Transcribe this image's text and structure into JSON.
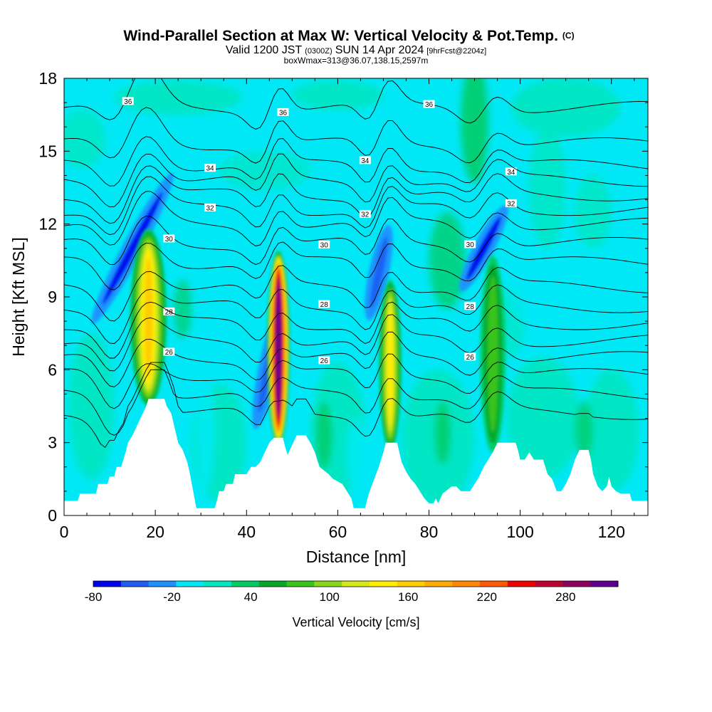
{
  "chart_data": {
    "type": "heatmap",
    "title": "Wind-Parallel Section at Max W: Vertical Velocity & Pot.Temp.",
    "title_mark": "(C)",
    "subtitle": {
      "valid_prefix": "Valid 1200 JST",
      "utc": "(0300Z)",
      "date": "SUN 14 Apr 2024",
      "forecast": "[9hrFcst@2204z]"
    },
    "box_info": "boxWmax=313@36.07,138.15,2597m",
    "xlabel": "Distance [nm]",
    "ylabel": "Height [Kft MSL]",
    "xlim": [
      0,
      128
    ],
    "ylim": [
      0,
      18
    ],
    "x_ticks": [
      0,
      20,
      40,
      60,
      80,
      100,
      120
    ],
    "y_ticks": [
      0,
      3,
      6,
      9,
      12,
      15,
      18
    ],
    "colorbar": {
      "label": "Vertical Velocity [cm/s]",
      "min": -80,
      "max": 320,
      "step": 20,
      "tick_values": [
        -80,
        -20,
        40,
        100,
        160,
        220,
        280
      ],
      "colors": [
        "#0000ee",
        "#1f5cf2",
        "#1e90ff",
        "#00e8f6",
        "#00e6c0",
        "#00cc66",
        "#05a82c",
        "#38c41a",
        "#8cd61a",
        "#d4e81c",
        "#ffee00",
        "#ffcc00",
        "#ffaa00",
        "#ff8800",
        "#ff5a00",
        "#ee0000",
        "#c00030",
        "#8c0060",
        "#5c0090"
      ]
    },
    "theta_contour_labels": [
      "36",
      "34",
      "32",
      "30",
      "28",
      "26"
    ],
    "updraft_cores": [
      {
        "x": 18.5,
        "base_kft": 4.8,
        "top_kft": 12.1,
        "max_cms": 150
      },
      {
        "x": 47,
        "base_kft": 3.2,
        "top_kft": 11.2,
        "max_cms": 313
      },
      {
        "x": 71.5,
        "base_kft": 3.0,
        "top_kft": 10.0,
        "max_cms": 120
      },
      {
        "x": 94,
        "base_kft": 2.9,
        "top_kft": 11.0,
        "max_cms": 70
      }
    ],
    "downdraft_bands": [
      {
        "x": 15,
        "base_kft": 7.5,
        "top_kft": 14.5,
        "min_cms": -80
      },
      {
        "x": 45,
        "base_kft": 3.5,
        "top_kft": 9,
        "min_cms": -60
      },
      {
        "x": 69,
        "base_kft": 8,
        "top_kft": 12,
        "min_cms": -60
      },
      {
        "x": 92,
        "base_kft": 9,
        "top_kft": 13,
        "min_cms": -80
      }
    ],
    "terrain_kft": [
      [
        0,
        0.6
      ],
      [
        3,
        0.6
      ],
      [
        3.5,
        0.9
      ],
      [
        7,
        0.9
      ],
      [
        7.5,
        1.3
      ],
      [
        9.5,
        1.3
      ],
      [
        10,
        1.6
      ],
      [
        11,
        1.6
      ],
      [
        11.5,
        2
      ],
      [
        12.5,
        2
      ],
      [
        13,
        2.3
      ],
      [
        13.5,
        2.6
      ],
      [
        14,
        3
      ],
      [
        15,
        3.3
      ],
      [
        16,
        3.7
      ],
      [
        17,
        4.1
      ],
      [
        18,
        4.5
      ],
      [
        18.5,
        4.8
      ],
      [
        22,
        4.8
      ],
      [
        22.5,
        4.5
      ],
      [
        23.5,
        4.2
      ],
      [
        24,
        3.8
      ],
      [
        24.5,
        3.4
      ],
      [
        25,
        3
      ],
      [
        26,
        2.7
      ],
      [
        27,
        2.2
      ],
      [
        27.5,
        1.8
      ],
      [
        28,
        1.3
      ],
      [
        28.5,
        0.8
      ],
      [
        29,
        0.3
      ],
      [
        33,
        0.3
      ],
      [
        33.5,
        0.6
      ],
      [
        34,
        1
      ],
      [
        35,
        1
      ],
      [
        35.5,
        1.3
      ],
      [
        37,
        1.3
      ],
      [
        37.5,
        1.7
      ],
      [
        39,
        1.7
      ],
      [
        40,
        1.7
      ],
      [
        41,
        2
      ],
      [
        42,
        2
      ],
      [
        43,
        2.2
      ],
      [
        44,
        2.6
      ],
      [
        45,
        3
      ],
      [
        46,
        3.2
      ],
      [
        48,
        3.2
      ],
      [
        48.5,
        2.8
      ],
      [
        49,
        2.5
      ],
      [
        50,
        2.9
      ],
      [
        51,
        3.3
      ],
      [
        53,
        3.3
      ],
      [
        54,
        3
      ],
      [
        55,
        2.6
      ],
      [
        55.5,
        2.3
      ],
      [
        56,
        2
      ],
      [
        58,
        1.7
      ],
      [
        59,
        1.5
      ],
      [
        61,
        1.3
      ],
      [
        62,
        1
      ],
      [
        63,
        0.7
      ],
      [
        63.5,
        0.3
      ],
      [
        66,
        0.3
      ],
      [
        66.5,
        0.7
      ],
      [
        67,
        1
      ],
      [
        68,
        1.5
      ],
      [
        69,
        2
      ],
      [
        70,
        2.6
      ],
      [
        70.5,
        3
      ],
      [
        73,
        3
      ],
      [
        73.5,
        2.6
      ],
      [
        74,
        2.2
      ],
      [
        75,
        1.8
      ],
      [
        76,
        1.5
      ],
      [
        77,
        1.3
      ],
      [
        78,
        1
      ],
      [
        79,
        0.7
      ],
      [
        80,
        0.5
      ],
      [
        81,
        0.5
      ],
      [
        81.5,
        0.7
      ],
      [
        82,
        0.5
      ],
      [
        83,
        0.9
      ],
      [
        85,
        1.2
      ],
      [
        86,
        1.2
      ],
      [
        87,
        1
      ],
      [
        89,
        1
      ],
      [
        90,
        1.3
      ],
      [
        91,
        1.6
      ],
      [
        92,
        2
      ],
      [
        93,
        2.3
      ],
      [
        94,
        2.6
      ],
      [
        95,
        3
      ],
      [
        99,
        3
      ],
      [
        99.5,
        2.7
      ],
      [
        100,
        2.3
      ],
      [
        101,
        2.3
      ],
      [
        102,
        2.6
      ],
      [
        103,
        2.3
      ],
      [
        105,
        2.3
      ],
      [
        105.5,
        2
      ],
      [
        106,
        1.7
      ],
      [
        107,
        1.5
      ],
      [
        108,
        1
      ],
      [
        109,
        1
      ],
      [
        110,
        1.3
      ],
      [
        111,
        1.7
      ],
      [
        111.5,
        2
      ],
      [
        112,
        2.3
      ],
      [
        113,
        2.7
      ],
      [
        115,
        2.7
      ],
      [
        115.5,
        2.3
      ],
      [
        116,
        1.7
      ],
      [
        117,
        1.2
      ],
      [
        118,
        1
      ],
      [
        119,
        1.2
      ],
      [
        119.5,
        1.6
      ],
      [
        120,
        1.2
      ],
      [
        121,
        1
      ],
      [
        122,
        0.9
      ],
      [
        124,
        0.9
      ],
      [
        124.5,
        0.6
      ],
      [
        128,
        0.6
      ]
    ]
  }
}
